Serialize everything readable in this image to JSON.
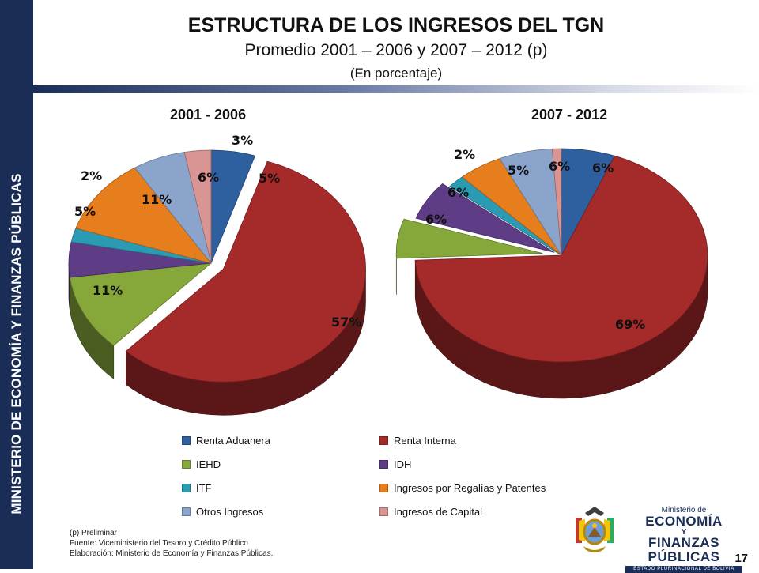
{
  "sidebar": {
    "text": "MINISTERIO DE ECONOMÍA Y FINANZAS PÚBLICAS"
  },
  "header": {
    "title": "ESTRUCTURA DE LOS INGRESOS DEL TGN",
    "subtitle": "Promedio 2001 – 2006 y 2007 – 2012 (p)",
    "subtitle2": "(En porcentaje)"
  },
  "chart_data": [
    {
      "type": "pie",
      "title": "2001 - 2006",
      "categories": [
        "Renta Aduanera",
        "Renta Interna",
        "IEHD",
        "IDH",
        "ITF",
        "Ingresos por Regalías y Patentes",
        "Otros Ingresos",
        "Ingresos de Capital"
      ],
      "values": [
        5,
        57,
        11,
        5,
        2,
        11,
        6,
        3
      ],
      "labels": [
        "5%",
        "57%",
        "11%",
        "5%",
        "2%",
        "11%",
        "6%",
        "3%"
      ],
      "colors": [
        "#2e5f9f",
        "#a52a2a",
        "#86a83a",
        "#5e3d86",
        "#2b9bb3",
        "#e67e1d",
        "#8aa4cc",
        "#d99593"
      ]
    },
    {
      "type": "pie",
      "title": "2007 - 2012",
      "categories": [
        "Renta Aduanera",
        "Renta Interna",
        "IEHD",
        "IDH",
        "ITF",
        "Ingresos por Regalías y Patentes",
        "Otros Ingresos",
        "Ingresos de Capital"
      ],
      "values": [
        6,
        69,
        6,
        6,
        2,
        5,
        6,
        1
      ],
      "labels": [
        "6%",
        "69%",
        "6%",
        "6%",
        "2%",
        "5%",
        "6%",
        ""
      ],
      "colors": [
        "#2e5f9f",
        "#a52a2a",
        "#86a83a",
        "#5e3d86",
        "#2b9bb3",
        "#e67e1d",
        "#8aa4cc",
        "#d99593"
      ]
    }
  ],
  "legend": {
    "placement": "bottom",
    "items": [
      "Renta Aduanera",
      "Renta Interna",
      "IEHD",
      "IDH",
      "ITF",
      "Ingresos por Regalías y Patentes",
      "Otros Ingresos",
      "Ingresos de Capital"
    ]
  },
  "notes": {
    "line1": "(p) Preliminar",
    "line2": "Fuente: Viceministerio del Tesoro y Crédito Público",
    "line3": "Elaboración: Ministerio de Economía y Finanzas Públicas,"
  },
  "page_number": "17",
  "logo": {
    "small": "Ministerio de",
    "line1": "ECONOMÍA",
    "conj": "Y",
    "line2": "FINANZAS PÚBLICAS",
    "bar": "ESTADO PLURINACIONAL DE BOLIVIA"
  }
}
